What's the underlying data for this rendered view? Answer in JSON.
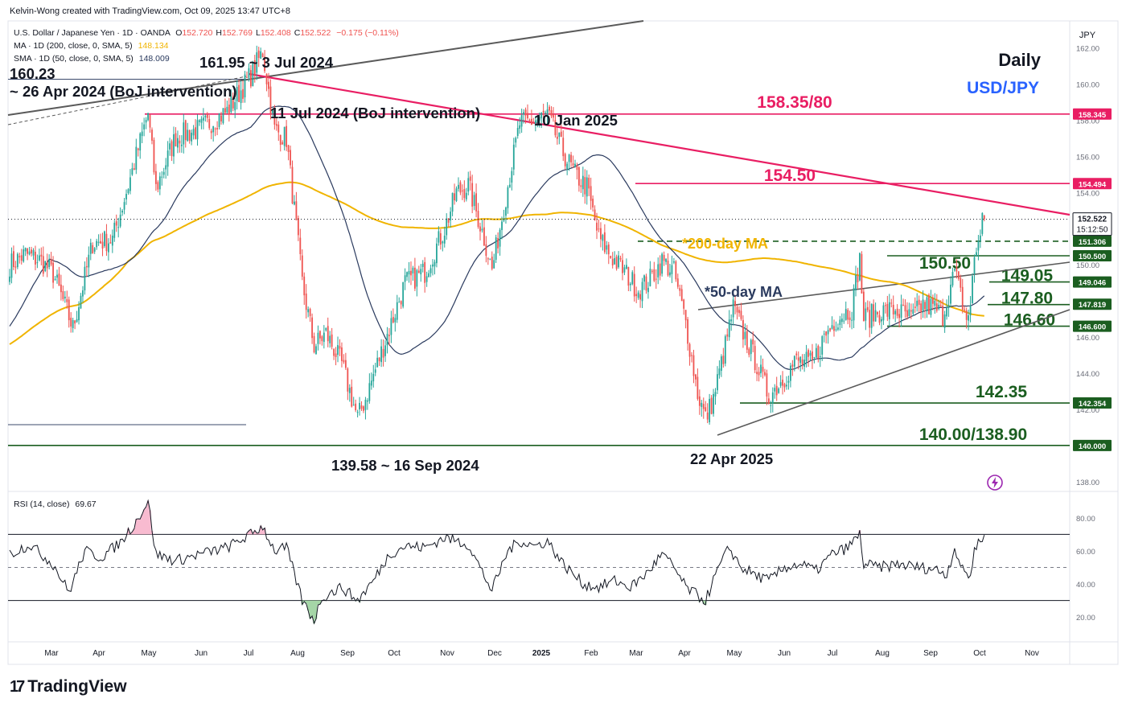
{
  "header": {
    "attribution": "Kelvin-Wong created with TradingView.com, Oct 09, 2025 13:47 UTC+8"
  },
  "legend": {
    "symbol": "U.S. Dollar / Japanese Yen · 1D · OANDA",
    "ohlc": [
      {
        "k": "O",
        "v": "152.720"
      },
      {
        "k": "H",
        "v": "152.769"
      },
      {
        "k": "L",
        "v": "152.408"
      },
      {
        "k": "C",
        "v": "152.522"
      }
    ],
    "change": "−0.175 (−0.11%)",
    "ma200": {
      "label": "MA · 1D (200, close, 0, SMA, 5)",
      "value": "148.134"
    },
    "sma50": {
      "label": "SMA · 1D (50, close, 0, SMA, 5)",
      "value": "148.009"
    },
    "rsi": {
      "label": "RSI (14, close)",
      "value": "69.67"
    }
  },
  "brand": {
    "name": "TradingView",
    "logo": "17"
  },
  "colors": {
    "up": "#26a69a",
    "down": "#ef5350",
    "ma200": "#f0b400",
    "sma50": "#2a3a5e",
    "resistance": "#e91e63",
    "support": "#1b5e20",
    "blue": "#2962ff",
    "trend": "#5a5a5a",
    "rsi": "#131722"
  },
  "chart_data": [
    {
      "type": "candlestick",
      "title": "Daily",
      "subtitle": "USD/JPY",
      "y_unit": "JPY",
      "ylim": [
        137.5,
        163.5
      ],
      "y_ticks": [
        138,
        140,
        142,
        144,
        146,
        148,
        150,
        152,
        154,
        156,
        158,
        160,
        162
      ],
      "x_ticks": [
        "Mar",
        "Apr",
        "May",
        "Jun",
        "Jul",
        "Aug",
        "Sep",
        "Oct",
        "Nov",
        "Dec",
        "2025",
        "Feb",
        "Mar",
        "Apr",
        "May",
        "Jun",
        "Jul",
        "Aug",
        "Sep",
        "Oct",
        "Nov"
      ],
      "current_price": "152.522",
      "countdown": "15:12:50",
      "price_tags": [
        {
          "value": 158.345,
          "text": "158.345",
          "color": "#e91e63"
        },
        {
          "value": 154.494,
          "text": "154.494",
          "color": "#e91e63"
        },
        {
          "value": 151.306,
          "text": "151.306",
          "color": "#1b5e20"
        },
        {
          "value": 150.5,
          "text": "150.500",
          "color": "#1b5e20"
        },
        {
          "value": 149.046,
          "text": "149.046",
          "color": "#1b5e20"
        },
        {
          "value": 147.819,
          "text": "147.819",
          "color": "#1b5e20"
        },
        {
          "value": 146.6,
          "text": "146.600",
          "color": "#1b5e20"
        },
        {
          "value": 142.354,
          "text": "142.354",
          "color": "#1b5e20"
        },
        {
          "value": 140.0,
          "text": "140.000",
          "color": "#1b5e20"
        }
      ],
      "levels": [
        {
          "price": 158.345,
          "label": "158.35/80",
          "color": "#e91e63"
        },
        {
          "price": 154.5,
          "label": "154.50",
          "color": "#e91e63"
        },
        {
          "price": 150.5,
          "label": "150.50",
          "color": "#1b5e20",
          "dashed": false
        },
        {
          "price": 151.306,
          "label": "",
          "color": "#1b5e20",
          "dashed": true
        },
        {
          "price": 149.05,
          "label": "149.05",
          "color": "#1b5e20"
        },
        {
          "price": 147.8,
          "label": "147.80",
          "color": "#1b5e20"
        },
        {
          "price": 146.6,
          "label": "146.60",
          "color": "#1b5e20"
        },
        {
          "price": 142.35,
          "label": "142.35",
          "color": "#1b5e20"
        },
        {
          "price": 140.0,
          "label": "140.00/138.90",
          "color": "#1b5e20"
        }
      ],
      "annotations": [
        "160.23",
        "~ 26 Apr 2024 (BoJ intervention)",
        "161.95 ~ 3 Jul 2024",
        "11 Jul 2024 (BoJ intervention)",
        "10 Jan 2025",
        "139.58 ~ 16 Sep 2024",
        "22 Apr 2025",
        "*200-day MA",
        "*50-day MA"
      ],
      "price_anchors": [
        {
          "d": 0,
          "p": 150.0
        },
        {
          "d": 8,
          "p": 150.6
        },
        {
          "d": 16,
          "p": 150.2
        },
        {
          "d": 22,
          "p": 149.5
        },
        {
          "d": 32,
          "p": 146.5
        },
        {
          "d": 42,
          "p": 151.2
        },
        {
          "d": 52,
          "p": 151.4
        },
        {
          "d": 60,
          "p": 154.4
        },
        {
          "d": 70,
          "p": 158.4
        },
        {
          "d": 74,
          "p": 154.2
        },
        {
          "d": 84,
          "p": 157.1
        },
        {
          "d": 96,
          "p": 157.5
        },
        {
          "d": 110,
          "p": 158.5
        },
        {
          "d": 122,
          "p": 160.5
        },
        {
          "d": 128,
          "p": 161.8
        },
        {
          "d": 134,
          "p": 157.5
        },
        {
          "d": 140,
          "p": 157.0
        },
        {
          "d": 148,
          "p": 149.0
        },
        {
          "d": 154,
          "p": 145.5
        },
        {
          "d": 160,
          "p": 146.2
        },
        {
          "d": 168,
          "p": 144.5
        },
        {
          "d": 176,
          "p": 141.5
        },
        {
          "d": 180,
          "p": 142.6
        },
        {
          "d": 190,
          "p": 145.8
        },
        {
          "d": 200,
          "p": 149.0
        },
        {
          "d": 210,
          "p": 149.6
        },
        {
          "d": 220,
          "p": 152.0
        },
        {
          "d": 226,
          "p": 154.0
        },
        {
          "d": 232,
          "p": 154.4
        },
        {
          "d": 240,
          "p": 151.5
        },
        {
          "d": 244,
          "p": 149.7
        },
        {
          "d": 252,
          "p": 154.4
        },
        {
          "d": 258,
          "p": 157.8
        },
        {
          "d": 266,
          "p": 158.0
        },
        {
          "d": 272,
          "p": 158.3
        },
        {
          "d": 280,
          "p": 156.2
        },
        {
          "d": 286,
          "p": 155.0
        },
        {
          "d": 292,
          "p": 154.3
        },
        {
          "d": 298,
          "p": 151.5
        },
        {
          "d": 304,
          "p": 150.5
        },
        {
          "d": 312,
          "p": 149.5
        },
        {
          "d": 318,
          "p": 148.6
        },
        {
          "d": 324,
          "p": 149.2
        },
        {
          "d": 330,
          "p": 150.2
        },
        {
          "d": 336,
          "p": 149.6
        },
        {
          "d": 342,
          "p": 146.8
        },
        {
          "d": 348,
          "p": 142.9
        },
        {
          "d": 352,
          "p": 141.5
        },
        {
          "d": 356,
          "p": 142.6
        },
        {
          "d": 362,
          "p": 145.5
        },
        {
          "d": 366,
          "p": 147.6
        },
        {
          "d": 372,
          "p": 146.0
        },
        {
          "d": 378,
          "p": 144.5
        },
        {
          "d": 384,
          "p": 142.7
        },
        {
          "d": 392,
          "p": 143.8
        },
        {
          "d": 398,
          "p": 144.7
        },
        {
          "d": 406,
          "p": 144.5
        },
        {
          "d": 412,
          "p": 146.0
        },
        {
          "d": 418,
          "p": 147.0
        },
        {
          "d": 426,
          "p": 147.6
        },
        {
          "d": 430,
          "p": 150.3
        },
        {
          "d": 432,
          "p": 147.0
        },
        {
          "d": 440,
          "p": 147.4
        },
        {
          "d": 448,
          "p": 147.5
        },
        {
          "d": 456,
          "p": 147.0
        },
        {
          "d": 462,
          "p": 147.8
        },
        {
          "d": 468,
          "p": 147.6
        },
        {
          "d": 472,
          "p": 147.2
        },
        {
          "d": 478,
          "p": 149.6
        },
        {
          "d": 482,
          "p": 147.9
        },
        {
          "d": 484,
          "p": 147.0
        },
        {
          "d": 486,
          "p": 147.7
        },
        {
          "d": 488,
          "p": 150.4
        },
        {
          "d": 490,
          "p": 151.3
        },
        {
          "d": 492,
          "p": 152.6
        },
        {
          "d": 493,
          "p": 152.52
        }
      ],
      "rsi": {
        "ylim": [
          5,
          95
        ],
        "y_ticks": [
          20.0,
          40.0,
          60.0,
          80.0
        ],
        "overbought": 70,
        "midline": 50,
        "oversold": 30,
        "last": 69.67,
        "anchors": [
          {
            "d": 0,
            "v": 58
          },
          {
            "d": 10,
            "v": 64
          },
          {
            "d": 22,
            "v": 52
          },
          {
            "d": 30,
            "v": 35
          },
          {
            "d": 38,
            "v": 60
          },
          {
            "d": 46,
            "v": 56
          },
          {
            "d": 56,
            "v": 65
          },
          {
            "d": 64,
            "v": 78
          },
          {
            "d": 70,
            "v": 90
          },
          {
            "d": 74,
            "v": 58
          },
          {
            "d": 84,
            "v": 54
          },
          {
            "d": 96,
            "v": 58
          },
          {
            "d": 110,
            "v": 62
          },
          {
            "d": 122,
            "v": 70
          },
          {
            "d": 128,
            "v": 75
          },
          {
            "d": 134,
            "v": 60
          },
          {
            "d": 140,
            "v": 62
          },
          {
            "d": 148,
            "v": 30
          },
          {
            "d": 154,
            "v": 18
          },
          {
            "d": 158,
            "v": 32
          },
          {
            "d": 168,
            "v": 38
          },
          {
            "d": 176,
            "v": 30
          },
          {
            "d": 184,
            "v": 42
          },
          {
            "d": 192,
            "v": 58
          },
          {
            "d": 200,
            "v": 63
          },
          {
            "d": 210,
            "v": 62
          },
          {
            "d": 220,
            "v": 68
          },
          {
            "d": 226,
            "v": 66
          },
          {
            "d": 232,
            "v": 64
          },
          {
            "d": 240,
            "v": 45
          },
          {
            "d": 244,
            "v": 36
          },
          {
            "d": 252,
            "v": 60
          },
          {
            "d": 258,
            "v": 66
          },
          {
            "d": 266,
            "v": 63
          },
          {
            "d": 272,
            "v": 66
          },
          {
            "d": 280,
            "v": 52
          },
          {
            "d": 290,
            "v": 40
          },
          {
            "d": 298,
            "v": 38
          },
          {
            "d": 306,
            "v": 42
          },
          {
            "d": 314,
            "v": 38
          },
          {
            "d": 322,
            "v": 46
          },
          {
            "d": 330,
            "v": 58
          },
          {
            "d": 336,
            "v": 50
          },
          {
            "d": 342,
            "v": 38
          },
          {
            "d": 348,
            "v": 33
          },
          {
            "d": 352,
            "v": 30
          },
          {
            "d": 358,
            "v": 48
          },
          {
            "d": 364,
            "v": 62
          },
          {
            "d": 370,
            "v": 50
          },
          {
            "d": 378,
            "v": 45
          },
          {
            "d": 384,
            "v": 42
          },
          {
            "d": 392,
            "v": 50
          },
          {
            "d": 400,
            "v": 52
          },
          {
            "d": 408,
            "v": 48
          },
          {
            "d": 416,
            "v": 58
          },
          {
            "d": 424,
            "v": 62
          },
          {
            "d": 430,
            "v": 70
          },
          {
            "d": 432,
            "v": 52
          },
          {
            "d": 440,
            "v": 50
          },
          {
            "d": 450,
            "v": 52
          },
          {
            "d": 460,
            "v": 50
          },
          {
            "d": 468,
            "v": 49
          },
          {
            "d": 474,
            "v": 46
          },
          {
            "d": 478,
            "v": 62
          },
          {
            "d": 482,
            "v": 48
          },
          {
            "d": 486,
            "v": 45
          },
          {
            "d": 488,
            "v": 60
          },
          {
            "d": 491,
            "v": 68
          },
          {
            "d": 493,
            "v": 69.67
          }
        ]
      }
    }
  ]
}
